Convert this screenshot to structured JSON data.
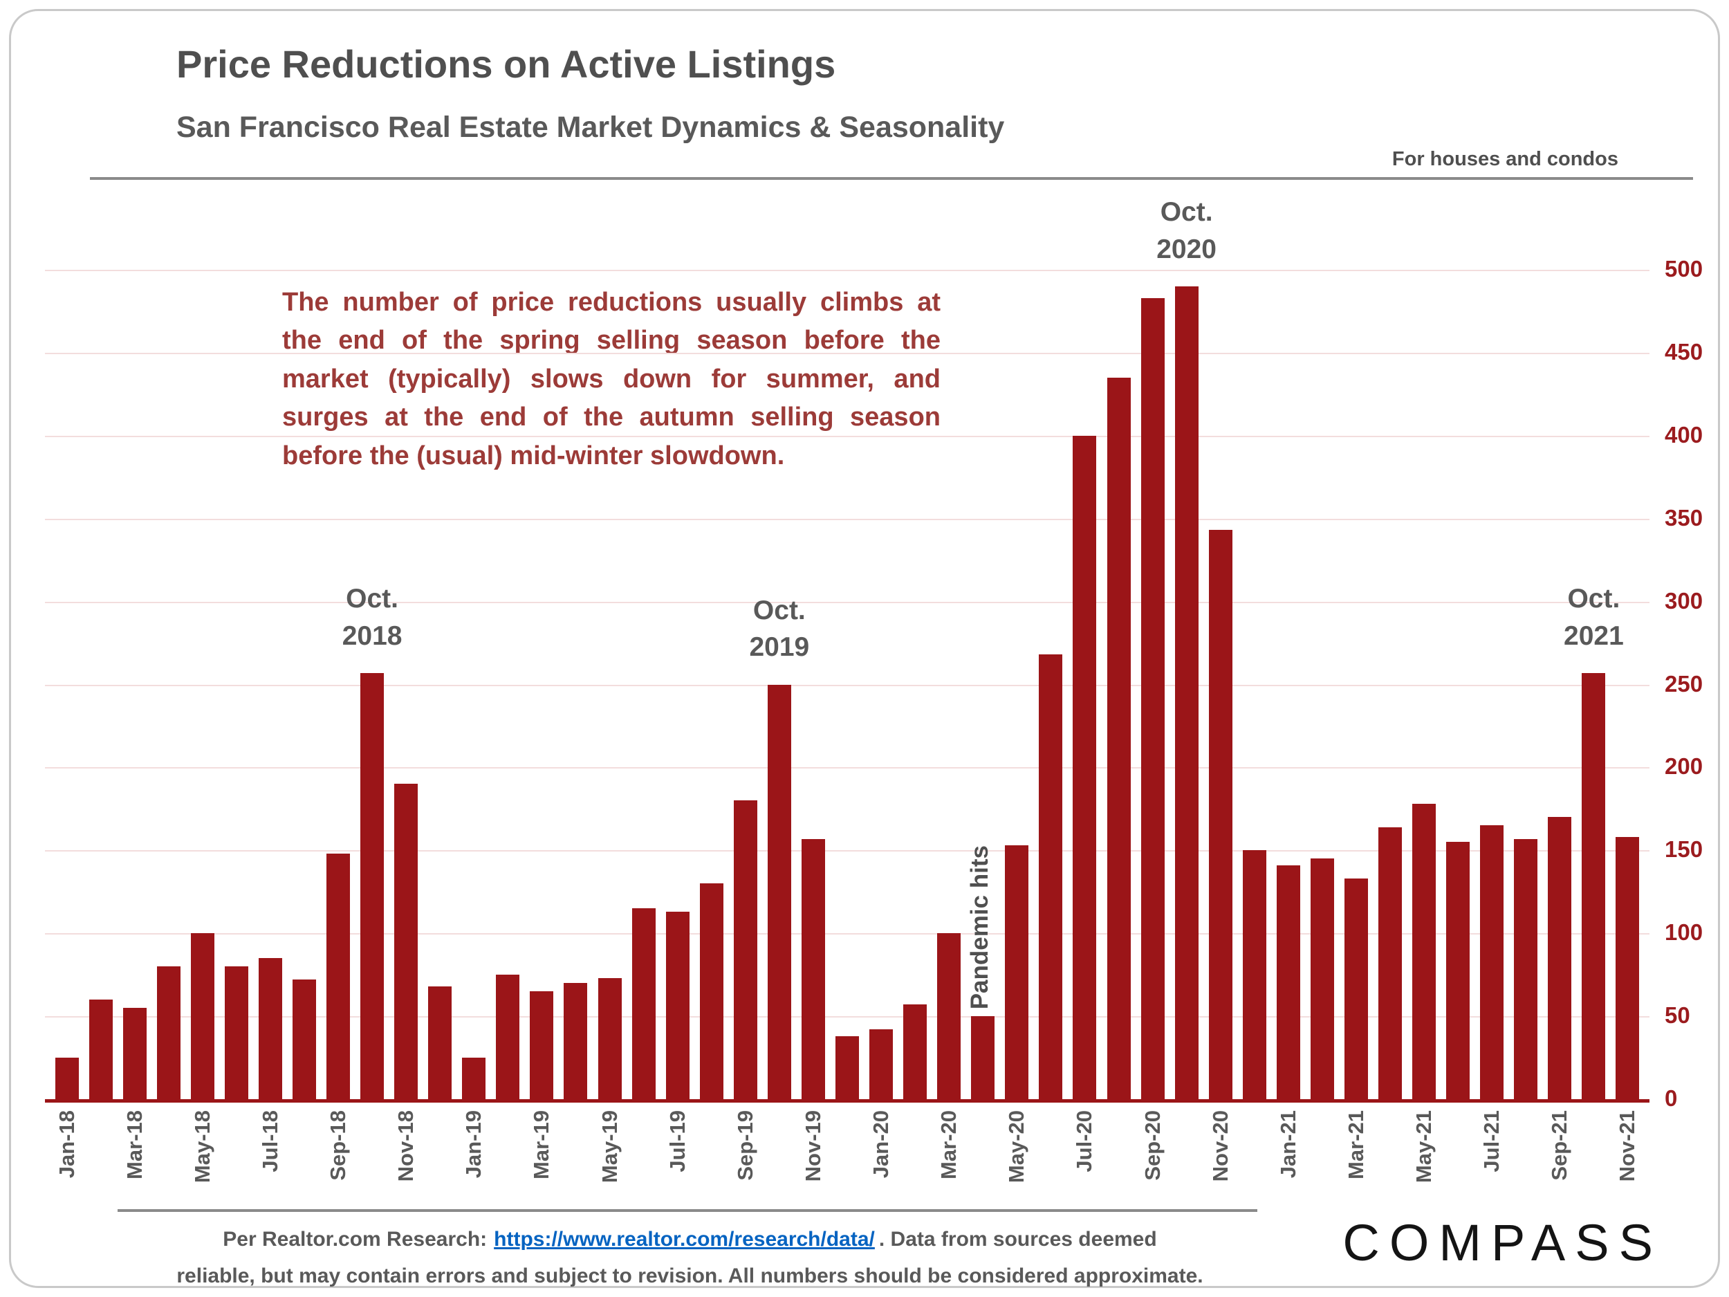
{
  "header": {
    "title": "Price Reductions on Active Listings",
    "subtitle": "San Francisco Real Estate Market Dynamics & Seasonality",
    "note": "For houses and condos"
  },
  "commentary": "The number of price reductions usually climbs at the end of the spring selling season before the market (typically) slows down for summer, and surges at the end of the autumn selling season before the (usual) mid-winter slowdown.",
  "chart_data": {
    "type": "bar",
    "title": "Price Reductions on Active Listings",
    "xlabel": "",
    "ylabel": "",
    "ylim": [
      0,
      500
    ],
    "yticks": [
      0,
      50,
      100,
      150,
      200,
      250,
      300,
      350,
      400,
      450,
      500
    ],
    "grid": true,
    "bar_color": "#9b1518",
    "axis_color": "#9b1518",
    "gridline_color": "#f3dddd",
    "categories": [
      "Jan-18",
      "Feb-18",
      "Mar-18",
      "Apr-18",
      "May-18",
      "Jun-18",
      "Jul-18",
      "Aug-18",
      "Sep-18",
      "Oct-18",
      "Nov-18",
      "Dec-18",
      "Jan-19",
      "Feb-19",
      "Mar-19",
      "Apr-19",
      "May-19",
      "Jun-19",
      "Jul-19",
      "Aug-19",
      "Sep-19",
      "Oct-19",
      "Nov-19",
      "Dec-19",
      "Jan-20",
      "Feb-20",
      "Mar-20",
      "Apr-20",
      "May-20",
      "Jun-20",
      "Jul-20",
      "Aug-20",
      "Sep-20",
      "Oct-20",
      "Nov-20",
      "Dec-20",
      "Jan-21",
      "Feb-21",
      "Mar-21",
      "Apr-21",
      "May-21",
      "Jun-21",
      "Jul-21",
      "Aug-21",
      "Sep-21",
      "Oct-21",
      "Nov-21"
    ],
    "values": [
      25,
      60,
      55,
      80,
      100,
      80,
      85,
      72,
      148,
      257,
      190,
      68,
      25,
      75,
      65,
      70,
      73,
      115,
      113,
      130,
      180,
      250,
      157,
      38,
      42,
      57,
      100,
      50,
      153,
      268,
      400,
      435,
      483,
      490,
      343,
      150,
      141,
      145,
      133,
      164,
      178,
      155,
      165,
      157,
      170,
      257,
      158
    ],
    "x_tick_labels_shown_every": 2,
    "annotations": [
      {
        "lines": [
          "Oct.",
          "2018"
        ],
        "barIndex": 9,
        "rotated": false
      },
      {
        "lines": [
          "Oct.",
          "2019"
        ],
        "barIndex": 21,
        "rotated": false
      },
      {
        "lines": [
          "Oct.",
          "2020"
        ],
        "barIndex": 33,
        "rotated": false
      },
      {
        "lines": [
          "Oct.",
          "2021"
        ],
        "barIndex": 45,
        "rotated": false
      },
      {
        "lines": [
          "Pandemic hits"
        ],
        "barIndex": 27,
        "rotated": true
      }
    ]
  },
  "footer": {
    "prefix": "Per Realtor.com Research:",
    "link_text": "https://www.realtor.com/research/data/",
    "suffix_line1": ". Data from sources deemed",
    "line2": "reliable, but may contain errors and subject to revision. All numbers should be considered approximate.",
    "logo": "COMPASS"
  }
}
